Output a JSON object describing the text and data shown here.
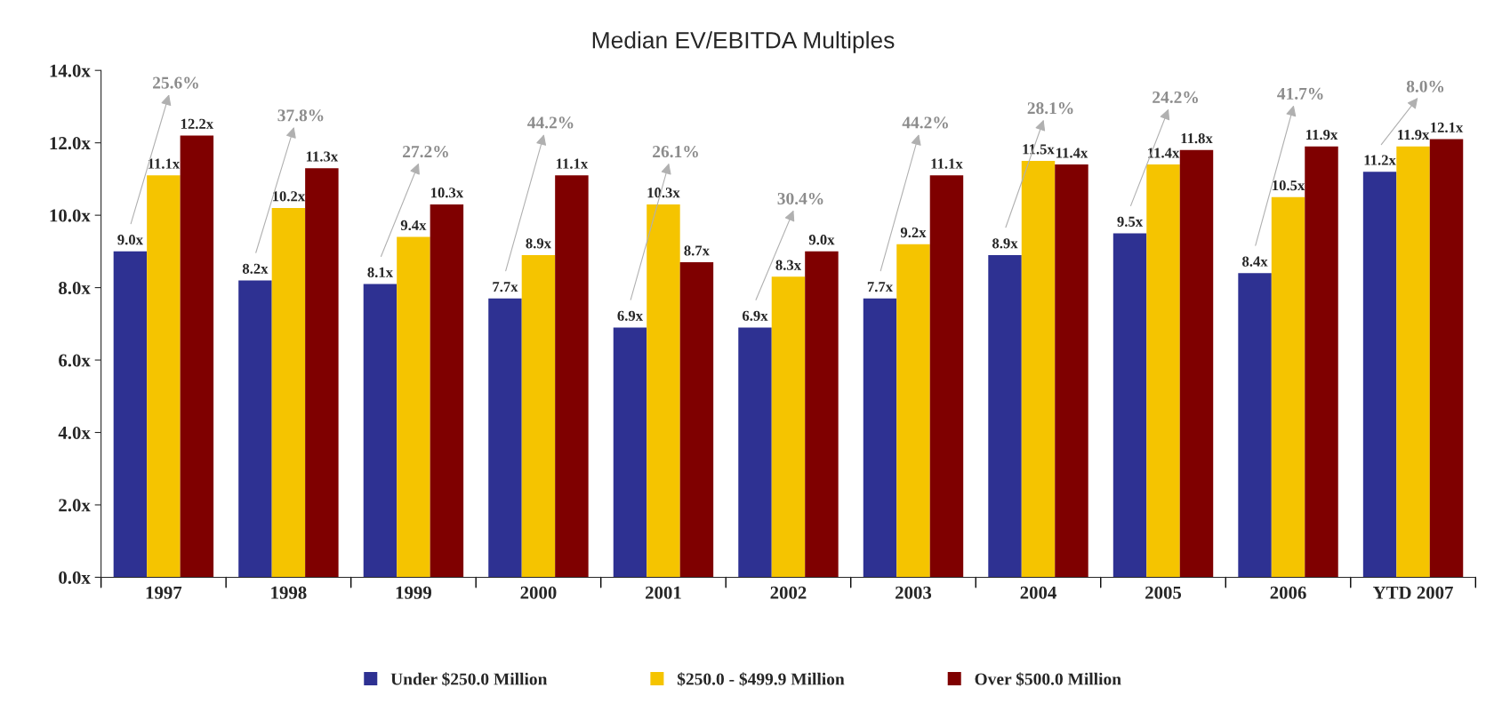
{
  "chart_data": {
    "type": "bar",
    "title": "Median EV/EBITDA Multiples",
    "categories": [
      "1997",
      "1998",
      "1999",
      "2000",
      "2001",
      "2002",
      "2003",
      "2004",
      "2005",
      "2006",
      "YTD 2007"
    ],
    "series": [
      {
        "name": "Under $250.0 Million",
        "color": "#2e3192",
        "values": [
          9.0,
          8.2,
          8.1,
          7.7,
          6.9,
          6.9,
          7.7,
          8.9,
          9.5,
          8.4,
          11.2
        ],
        "value_labels": [
          "9.0x",
          "8.2x",
          "8.1x",
          "7.7x",
          "6.9x",
          "6.9x",
          "7.7x",
          "8.9x",
          "9.5x",
          "8.4x",
          "11.2x"
        ]
      },
      {
        "name": "$250.0 - $499.9 Million",
        "color": "#f5c400",
        "values": [
          11.1,
          10.2,
          9.4,
          8.9,
          10.3,
          8.3,
          9.2,
          11.5,
          11.4,
          10.5,
          11.9
        ],
        "value_labels": [
          "11.1x",
          "10.2x",
          "9.4x",
          "8.9x",
          "10.3x",
          "8.3x",
          "9.2x",
          "11.5x",
          "11.4x",
          "10.5x",
          "11.9x"
        ]
      },
      {
        "name": "Over $500.0 Million",
        "color": "#7f0000",
        "values": [
          12.2,
          11.3,
          10.3,
          11.1,
          8.7,
          9.0,
          11.1,
          11.4,
          11.8,
          11.9,
          12.1
        ],
        "value_labels": [
          "12.2x",
          "11.3x",
          "10.3x",
          "11.1x",
          "8.7x",
          "9.0x",
          "11.1x",
          "11.4x",
          "11.8x",
          "11.9x",
          "12.1x"
        ]
      }
    ],
    "ylim": [
      0,
      14
    ],
    "yticks": [
      {
        "value": 0,
        "label": "0.0x"
      },
      {
        "value": 2,
        "label": "2.0x"
      },
      {
        "value": 4,
        "label": "4.0x"
      },
      {
        "value": 6,
        "label": "6.0x"
      },
      {
        "value": 8,
        "label": "8.0x"
      },
      {
        "value": 10,
        "label": "10.0x"
      },
      {
        "value": 12,
        "label": "12.0x"
      },
      {
        "value": 14,
        "label": "14.0x"
      }
    ],
    "grid": false,
    "legend": "bottom",
    "annotations": [
      "25.6%",
      "37.8%",
      "27.2%",
      "44.2%",
      "26.1%",
      "30.4%",
      "44.2%",
      "28.1%",
      "24.2%",
      "41.7%",
      "8.0%"
    ]
  }
}
